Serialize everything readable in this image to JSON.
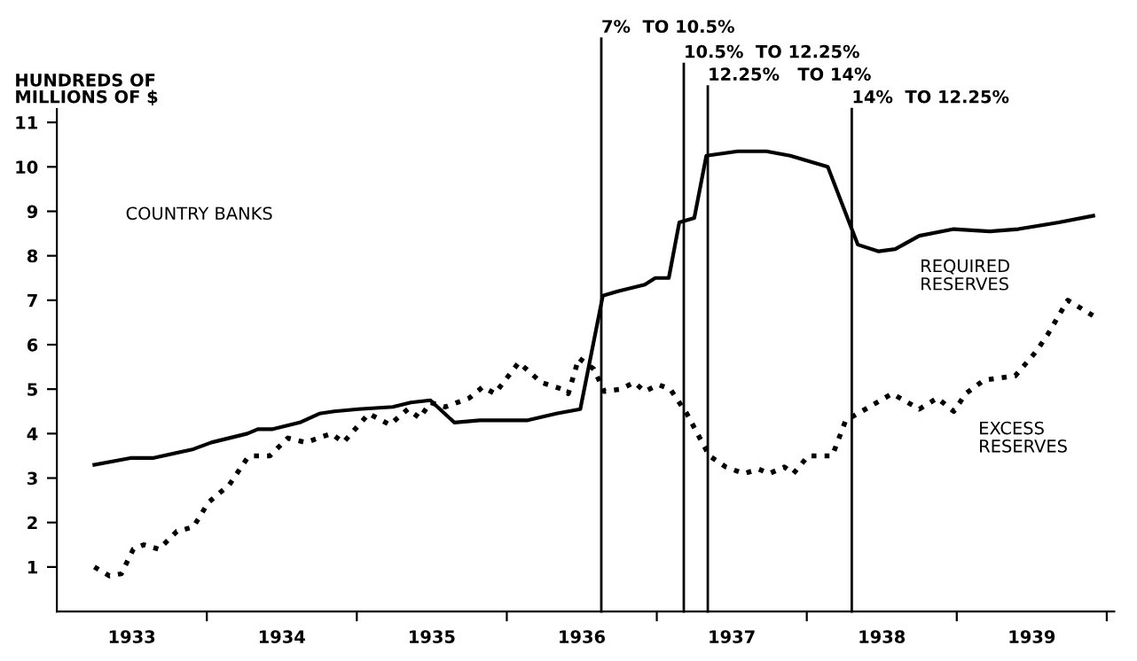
{
  "chart_data": {
    "type": "line",
    "ylabel": "HUNDREDS OF\nMILLIONS OF $",
    "annotations": [
      "COUNTRY BANKS"
    ],
    "series": [
      {
        "name": "REQUIRED\nRESERVES",
        "color": "#000000",
        "line_style": "solid",
        "x": [
          1933.25,
          1933.49,
          1933.64,
          1933.91,
          1934.03,
          1934.27,
          1934.34,
          1934.44,
          1934.62,
          1934.75,
          1934.85,
          1935.01,
          1935.24,
          1935.36,
          1935.49,
          1935.65,
          1935.82,
          1935.94,
          1936.02,
          1936.14,
          1936.33,
          1936.49,
          1936.64,
          1936.74,
          1936.92,
          1936.99,
          1937.08,
          1937.15,
          1937.25,
          1937.33,
          1937.54,
          1937.73,
          1937.89,
          1938.14,
          1938.3,
          1938.34,
          1938.48,
          1938.59,
          1938.75,
          1938.98,
          1939.22,
          1939.41,
          1939.68,
          1939.91
        ],
        "values": [
          3.3,
          3.45,
          3.45,
          3.65,
          3.8,
          4.0,
          4.1,
          4.1,
          4.25,
          4.45,
          4.5,
          4.55,
          4.6,
          4.7,
          4.75,
          4.25,
          4.3,
          4.3,
          4.3,
          4.3,
          4.45,
          4.55,
          7.1,
          7.2,
          7.35,
          7.5,
          7.5,
          8.75,
          8.85,
          10.25,
          10.35,
          10.35,
          10.25,
          10.0,
          8.6,
          8.25,
          8.1,
          8.15,
          8.45,
          8.6,
          8.55,
          8.6,
          8.75,
          8.9
        ]
      },
      {
        "name": "EXCESS\nRESERVES",
        "color": "#000000",
        "line_style": "dotted",
        "x": [
          1933.25,
          1933.35,
          1933.43,
          1933.51,
          1933.58,
          1933.68,
          1933.8,
          1933.91,
          1934.01,
          1934.15,
          1934.27,
          1934.3,
          1934.42,
          1934.54,
          1934.66,
          1934.83,
          1934.91,
          1935.08,
          1935.22,
          1935.34,
          1935.42,
          1935.49,
          1935.59,
          1935.75,
          1935.84,
          1935.92,
          1936.08,
          1936.23,
          1936.37,
          1936.41,
          1936.48,
          1936.58,
          1936.65,
          1936.76,
          1936.85,
          1936.92,
          1937.01,
          1937.09,
          1937.2,
          1937.35,
          1937.46,
          1937.58,
          1937.68,
          1937.75,
          1937.85,
          1937.91,
          1938.01,
          1938.09,
          1938.17,
          1938.26,
          1938.34,
          1938.57,
          1938.75,
          1938.87,
          1938.98,
          1939.06,
          1939.18,
          1939.39,
          1939.53,
          1939.61,
          1939.74,
          1939.91
        ],
        "values": [
          1.0,
          0.8,
          0.85,
          1.4,
          1.5,
          1.4,
          1.8,
          1.9,
          2.45,
          2.85,
          3.45,
          3.5,
          3.5,
          3.9,
          3.8,
          4.0,
          3.8,
          4.45,
          4.2,
          4.55,
          4.35,
          4.7,
          4.6,
          4.8,
          5.05,
          4.9,
          5.6,
          5.15,
          5.0,
          4.9,
          5.7,
          5.45,
          4.95,
          5.0,
          5.15,
          4.95,
          5.1,
          5.0,
          4.45,
          3.5,
          3.25,
          3.1,
          3.2,
          3.1,
          3.25,
          3.1,
          3.5,
          3.5,
          3.5,
          4.3,
          4.45,
          4.9,
          4.55,
          4.8,
          4.5,
          4.9,
          5.2,
          5.3,
          5.85,
          6.25,
          7.0,
          6.65
        ]
      }
    ],
    "ref_lines": [
      {
        "axis": "x",
        "value": 1936.63,
        "label": "7%  TO 10.5%",
        "color": "#000000"
      },
      {
        "axis": "x",
        "value": 1937.18,
        "label": "10.5%  TO 12.25%",
        "color": "#000000"
      },
      {
        "axis": "x",
        "value": 1937.34,
        "label": "12.25%   TO 14%",
        "color": "#000000"
      },
      {
        "axis": "x",
        "value": 1938.3,
        "label": "14%  TO 12.25%",
        "color": "#000000"
      }
    ],
    "xlim": [
      1933,
      1940.05
    ],
    "xticks": [
      {
        "value": 1933.5,
        "label": "1933"
      },
      {
        "value": 1934,
        "label": null
      },
      {
        "value": 1934.5,
        "label": "1934"
      },
      {
        "value": 1935,
        "label": null
      },
      {
        "value": 1935.5,
        "label": "1935"
      },
      {
        "value": 1936,
        "label": null
      },
      {
        "value": 1936.5,
        "label": "1936"
      },
      {
        "value": 1937,
        "label": null
      },
      {
        "value": 1937.5,
        "label": "1937"
      },
      {
        "value": 1938,
        "label": null
      },
      {
        "value": 1938.5,
        "label": "1938"
      },
      {
        "value": 1939,
        "label": null
      },
      {
        "value": 1939.5,
        "label": "1939"
      },
      {
        "value": 1940,
        "label": null
      }
    ],
    "ylim": [
      0,
      11.3
    ],
    "yticks": [
      1,
      2,
      3,
      4,
      5,
      6,
      7,
      8,
      9,
      10,
      11
    ],
    "grid": false,
    "legend": false
  }
}
